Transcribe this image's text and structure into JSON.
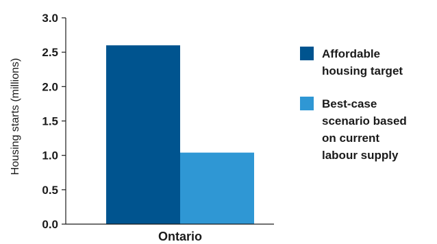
{
  "chart_data": {
    "type": "bar",
    "categories": [
      "Ontario"
    ],
    "series": [
      {
        "name": "Affordable housing target",
        "label_lines": [
          "Affordable",
          "housing target"
        ],
        "values": [
          2.6
        ],
        "color": "#00548f"
      },
      {
        "name": "Best-case scenario based on current labour supply",
        "label_lines": [
          "Best-case",
          "scenario based",
          "on current",
          "labour supply"
        ],
        "values": [
          1.04
        ],
        "color": "#2f97d4"
      }
    ],
    "title": "",
    "xlabel": "",
    "ylabel": "Housing starts (millions)",
    "ylim": [
      0,
      3.0
    ],
    "yticks": [
      "0.0",
      "0.5",
      "1.0",
      "1.5",
      "2.0",
      "2.5",
      "3.0"
    ],
    "grid": false,
    "legend_position": "right"
  }
}
